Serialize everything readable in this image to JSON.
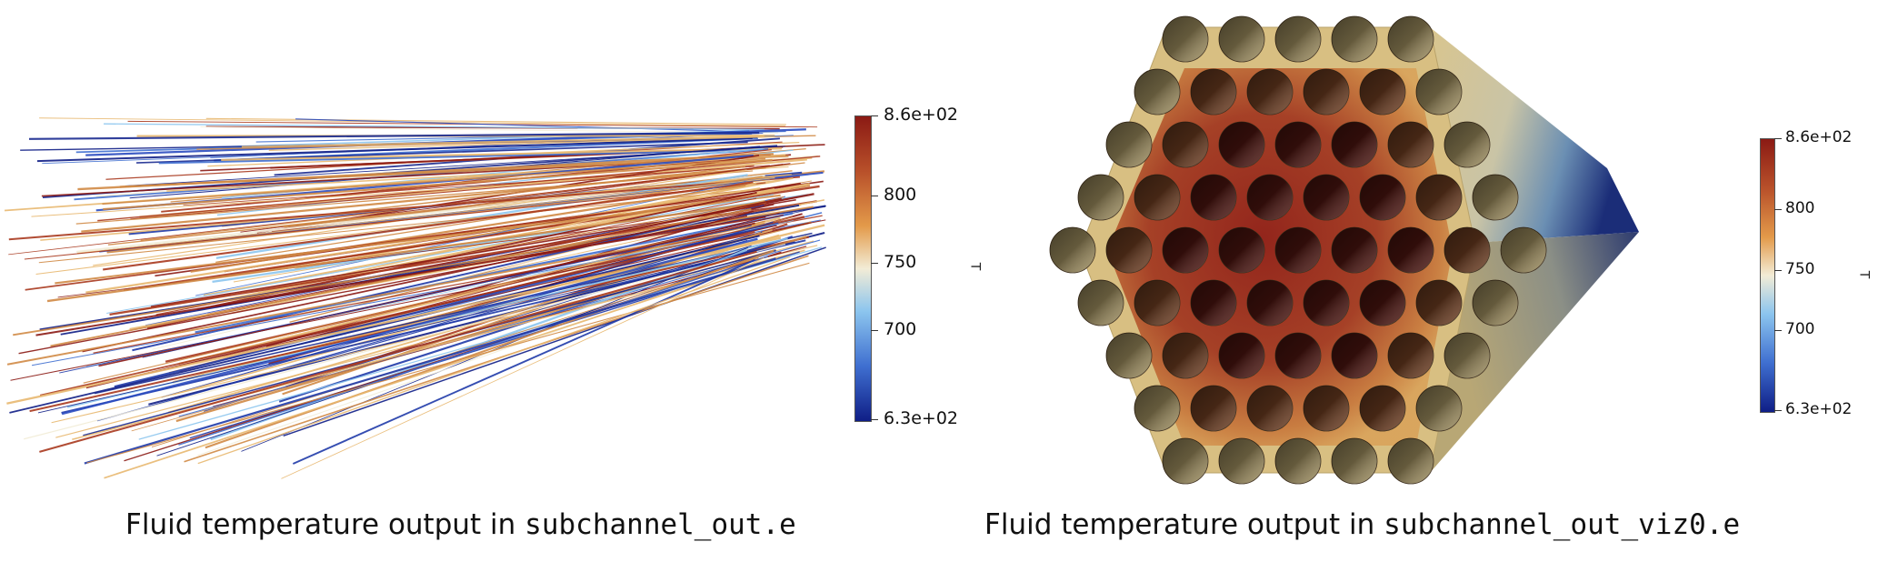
{
  "panels": [
    {
      "caption_prefix": "Fluid temperature output in ",
      "caption_code": "subchannel_out.e",
      "colorbar": {
        "title": "T",
        "labels": [
          "8.6e+02",
          "800",
          "750",
          "700",
          "6.3e+02"
        ]
      }
    },
    {
      "caption_prefix": "Fluid temperature output in ",
      "caption_code": "subchannel_out_viz0.e",
      "colorbar": {
        "title": "T",
        "labels": [
          "8.6e+02",
          "800",
          "750",
          "700",
          "6.3e+02"
        ]
      }
    }
  ],
  "colors": {
    "cmap_hot": "#8b1a14",
    "cmap_warm": "#e39a4a",
    "cmap_mid": "#f2ecd6",
    "cmap_cool": "#6fb3e8",
    "cmap_cold": "#0f1e86",
    "duct": "#d8bf82",
    "pin": "#8a8060"
  }
}
